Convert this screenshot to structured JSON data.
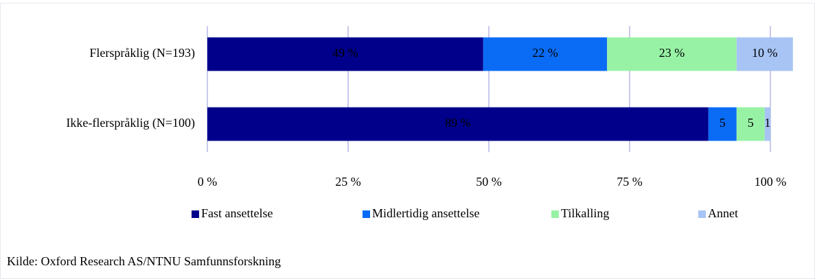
{
  "chart_data": {
    "type": "stacked-barh",
    "categories": [
      "Flerspråklig (N=193)",
      "Ikke-flerspråklig (N=100)"
    ],
    "series": [
      {
        "name": "Fast ansettelse",
        "color": "#00008b",
        "values": [
          49,
          89
        ],
        "value_labels": [
          "49 %",
          "89 %"
        ]
      },
      {
        "name": "Midlertidig ansettelse",
        "color": "#0a6cf5",
        "values": [
          22,
          5
        ],
        "value_labels": [
          "22 %",
          "5"
        ]
      },
      {
        "name": "Tilkalling",
        "color": "#98f2a6",
        "values": [
          23,
          5
        ],
        "value_labels": [
          "23 %",
          "5"
        ]
      },
      {
        "name": "Annet",
        "color": "#a7c4f4",
        "values": [
          10,
          1
        ],
        "value_labels": [
          "10 %",
          "1"
        ]
      }
    ],
    "xlim": [
      0,
      100
    ],
    "xticks": [
      {
        "value": 0,
        "label": "0 %"
      },
      {
        "value": 25,
        "label": "25 %"
      },
      {
        "value": 50,
        "label": "50 %"
      },
      {
        "value": 75,
        "label": "75 %"
      },
      {
        "value": 100,
        "label": "100 %"
      }
    ],
    "grid": true,
    "legend": "bottom",
    "source": "Kilde: Oxford Research AS/NTNU Samfunnsforskning"
  }
}
